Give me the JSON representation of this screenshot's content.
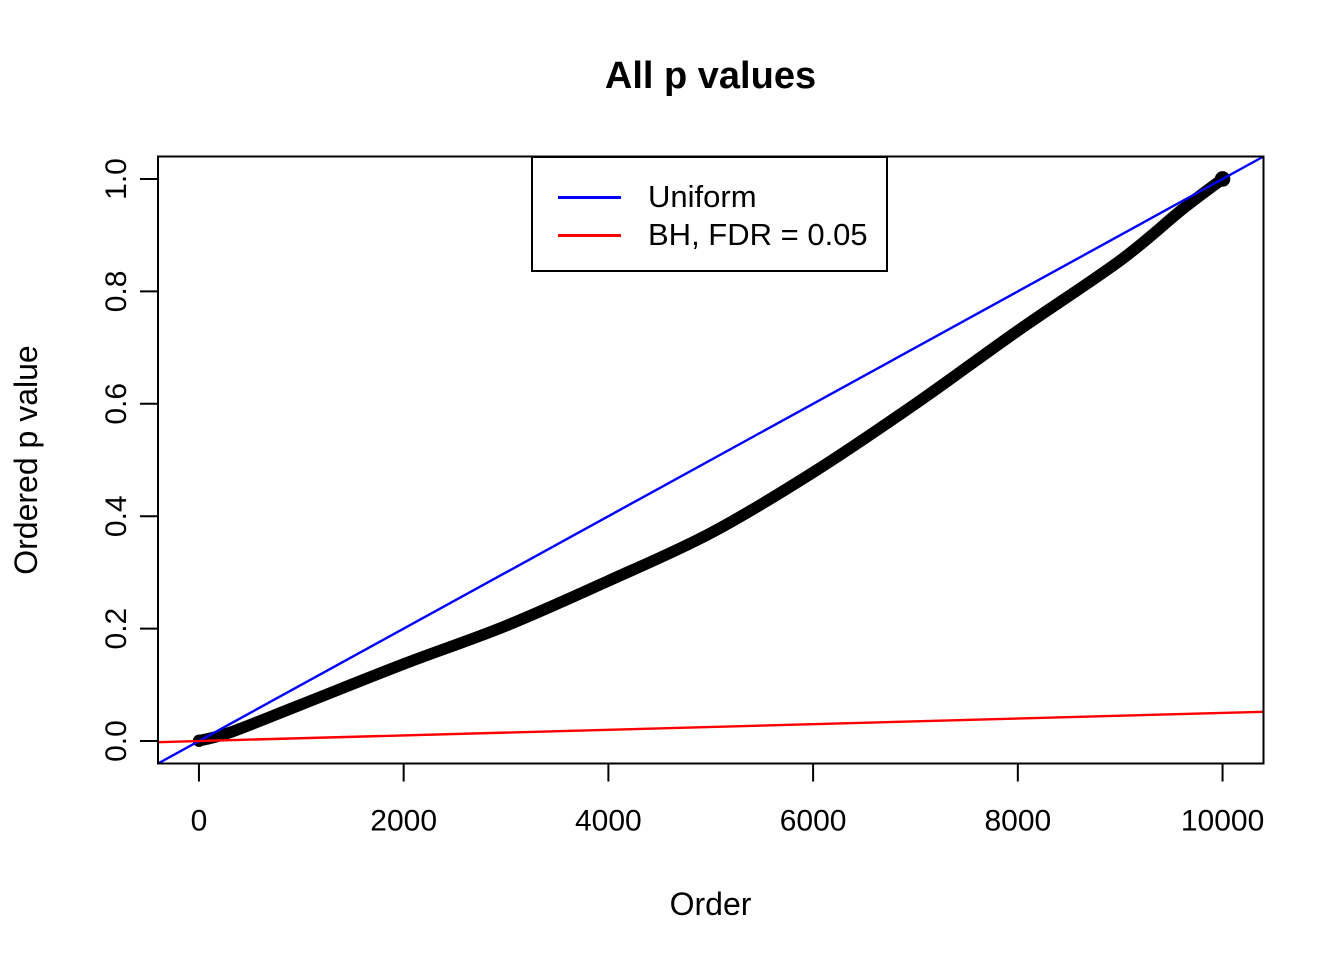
{
  "chart_data": {
    "type": "scatter",
    "title": "All p values",
    "xlabel": "Order",
    "ylabel": "Ordered p value",
    "background": "#FFFFFF",
    "grid": false,
    "x_axis": {
      "range": [
        -400,
        10400
      ],
      "data_range": [
        0,
        10000
      ],
      "ticks": [
        "0",
        "2000",
        "4000",
        "6000",
        "8000",
        "10000"
      ]
    },
    "y_axis": {
      "range": [
        -0.04,
        1.04
      ],
      "data_range": [
        0,
        1.0
      ],
      "ticks": [
        "0.0",
        "0.2",
        "0.4",
        "0.6",
        "0.8",
        "1.0"
      ]
    },
    "legend": {
      "position": "top-inside",
      "entries": [
        {
          "label": "Uniform",
          "color": "#0000FF"
        },
        {
          "label": "BH, FDR = 0.05",
          "color": "#FF0000"
        }
      ]
    },
    "series": [
      {
        "name": "ordered-p-values",
        "label": "Ordered p value curve",
        "type": "points-curve",
        "color": "#000000",
        "marker_diameter_px": 11.5,
        "x": [
          1,
          300,
          1000,
          2000,
          3000,
          4000,
          5000,
          6000,
          7000,
          8000,
          9000,
          9600,
          10000
        ],
        "y": [
          0.0005,
          0.015,
          0.065,
          0.137,
          0.205,
          0.285,
          0.37,
          0.478,
          0.6,
          0.73,
          0.855,
          0.945,
          1.0
        ]
      },
      {
        "name": "uniform-line",
        "label": "Uniform",
        "type": "line",
        "color": "#0000FF",
        "x": [
          -400,
          10400
        ],
        "y": [
          -0.04,
          1.04
        ]
      },
      {
        "name": "bh-fdr-line",
        "label": "BH, FDR = 0.05",
        "type": "line",
        "color": "#FF0000",
        "x": [
          -400,
          10400
        ],
        "y": [
          -0.002,
          0.052
        ]
      }
    ]
  }
}
